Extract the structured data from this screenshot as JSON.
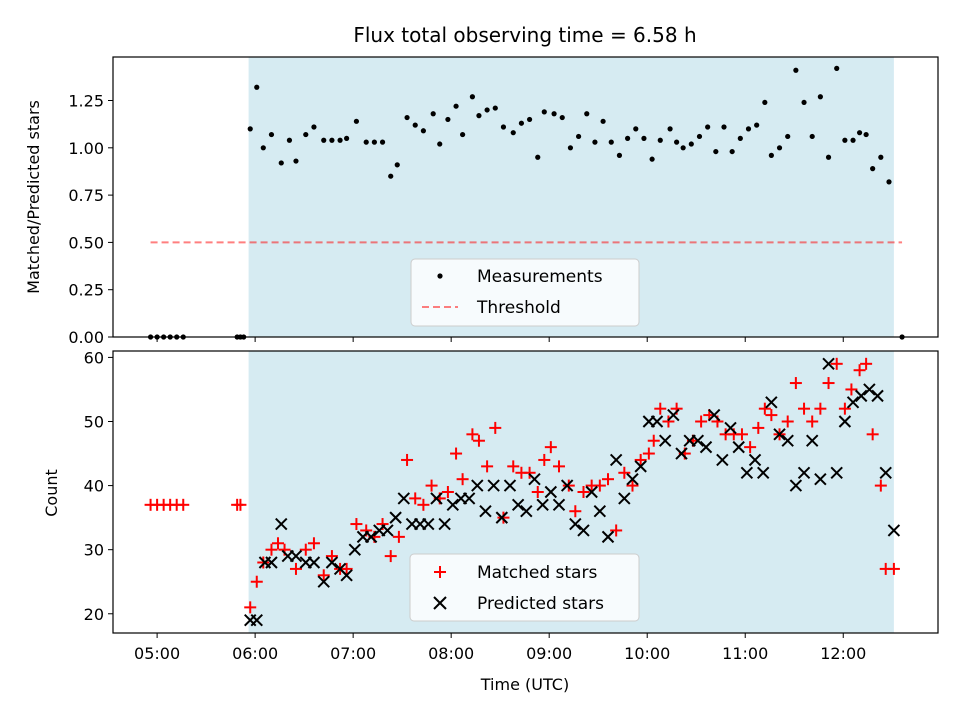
{
  "colors": {
    "observing_span": "#add8e6",
    "measurement": "#000000",
    "threshold": "#ff0000",
    "matched": "#ff0000",
    "predicted": "#000000"
  },
  "chart_data": [
    {
      "type": "scatter",
      "title": "Flux total observing time = 6.58 h",
      "xlabel": "",
      "ylabel": "Matched/Predicted stars",
      "xlim": [
        "04:33",
        "12:58"
      ],
      "ylim": [
        0,
        1.48
      ],
      "yticks": [
        "0.00",
        "0.25",
        "0.50",
        "0.75",
        "1.00",
        "1.25"
      ],
      "shaded_span": [
        "05:56",
        "12:31"
      ],
      "legend_position": "lower center",
      "series": [
        {
          "name": "Measurements",
          "marker": "dot",
          "points": [
            [
              "04:56",
              0
            ],
            [
              "05:00",
              0
            ],
            [
              "05:04",
              0
            ],
            [
              "05:08",
              0
            ],
            [
              "05:12",
              0
            ],
            [
              "05:16",
              0
            ],
            [
              "05:49",
              0
            ],
            [
              "05:51",
              0
            ],
            [
              "05:53",
              0
            ],
            [
              "05:57",
              1.1
            ],
            [
              "06:01",
              1.32
            ],
            [
              "06:05",
              1.0
            ],
            [
              "06:10",
              1.07
            ],
            [
              "06:16",
              0.92
            ],
            [
              "06:21",
              1.04
            ],
            [
              "06:25",
              0.93
            ],
            [
              "06:31",
              1.07
            ],
            [
              "06:36",
              1.11
            ],
            [
              "06:42",
              1.04
            ],
            [
              "06:47",
              1.04
            ],
            [
              "06:52",
              1.04
            ],
            [
              "06:56",
              1.05
            ],
            [
              "07:02",
              1.14
            ],
            [
              "07:08",
              1.03
            ],
            [
              "07:13",
              1.03
            ],
            [
              "07:18",
              1.03
            ],
            [
              "07:23",
              0.85
            ],
            [
              "07:27",
              0.91
            ],
            [
              "07:33",
              1.16
            ],
            [
              "07:38",
              1.12
            ],
            [
              "07:43",
              1.09
            ],
            [
              "07:49",
              1.18
            ],
            [
              "07:53",
              1.02
            ],
            [
              "07:58",
              1.15
            ],
            [
              "08:03",
              1.22
            ],
            [
              "08:07",
              1.07
            ],
            [
              "08:13",
              1.27
            ],
            [
              "08:17",
              1.17
            ],
            [
              "08:22",
              1.2
            ],
            [
              "08:27",
              1.21
            ],
            [
              "08:32",
              1.11
            ],
            [
              "08:38",
              1.08
            ],
            [
              "08:43",
              1.13
            ],
            [
              "08:48",
              1.15
            ],
            [
              "08:53",
              0.95
            ],
            [
              "08:57",
              1.19
            ],
            [
              "09:03",
              1.18
            ],
            [
              "09:08",
              1.16
            ],
            [
              "09:13",
              1.0
            ],
            [
              "09:18",
              1.06
            ],
            [
              "09:23",
              1.18
            ],
            [
              "09:28",
              1.03
            ],
            [
              "09:33",
              1.14
            ],
            [
              "09:38",
              1.03
            ],
            [
              "09:43",
              0.96
            ],
            [
              "09:48",
              1.05
            ],
            [
              "09:53",
              1.1
            ],
            [
              "09:58",
              1.05
            ],
            [
              "10:03",
              0.94
            ],
            [
              "10:08",
              1.04
            ],
            [
              "10:14",
              1.1
            ],
            [
              "10:18",
              1.03
            ],
            [
              "10:22",
              1.0
            ],
            [
              "10:27",
              1.02
            ],
            [
              "10:32",
              1.06
            ],
            [
              "10:37",
              1.11
            ],
            [
              "10:42",
              0.98
            ],
            [
              "10:47",
              1.11
            ],
            [
              "10:52",
              0.98
            ],
            [
              "10:57",
              1.05
            ],
            [
              "11:02",
              1.1
            ],
            [
              "11:07",
              1.12
            ],
            [
              "11:12",
              1.24
            ],
            [
              "11:16",
              0.96
            ],
            [
              "11:21",
              1.0
            ],
            [
              "11:26",
              1.06
            ],
            [
              "11:31",
              1.41
            ],
            [
              "11:36",
              1.24
            ],
            [
              "11:41",
              1.06
            ],
            [
              "11:46",
              1.27
            ],
            [
              "11:51",
              0.95
            ],
            [
              "11:56",
              1.42
            ],
            [
              "12:01",
              1.04
            ],
            [
              "12:06",
              1.04
            ],
            [
              "12:10",
              1.08
            ],
            [
              "12:14",
              1.07
            ],
            [
              "12:18",
              0.89
            ],
            [
              "12:23",
              0.95
            ],
            [
              "12:28",
              0.82
            ],
            [
              "12:36",
              0
            ]
          ]
        },
        {
          "name": "Threshold",
          "style": "dashed",
          "points": [
            [
              "04:56",
              0.5
            ],
            [
              "12:36",
              0.5
            ]
          ]
        }
      ]
    },
    {
      "type": "scatter",
      "title": "",
      "xlabel": "Time (UTC)",
      "ylabel": "Count",
      "xlim": [
        "04:33",
        "12:58"
      ],
      "ylim": [
        17,
        61
      ],
      "xticks": [
        "05:00",
        "06:00",
        "07:00",
        "08:00",
        "09:00",
        "10:00",
        "11:00",
        "12:00"
      ],
      "yticks": [
        "20",
        "30",
        "40",
        "50",
        "60"
      ],
      "shaded_span": [
        "05:56",
        "12:31"
      ],
      "legend_position": "lower center",
      "series": [
        {
          "name": "Matched stars",
          "marker": "plus",
          "points": [
            [
              "04:56",
              37
            ],
            [
              "05:00",
              37
            ],
            [
              "05:04",
              37
            ],
            [
              "05:08",
              37
            ],
            [
              "05:12",
              37
            ],
            [
              "05:16",
              37
            ],
            [
              "05:49",
              37
            ],
            [
              "05:51",
              37
            ],
            [
              "05:57",
              21
            ],
            [
              "06:01",
              25
            ],
            [
              "06:05",
              28
            ],
            [
              "06:10",
              30
            ],
            [
              "06:14",
              31
            ],
            [
              "06:18",
              30
            ],
            [
              "06:25",
              27
            ],
            [
              "06:31",
              30
            ],
            [
              "06:36",
              31
            ],
            [
              "06:42",
              26
            ],
            [
              "06:47",
              29
            ],
            [
              "06:52",
              27
            ],
            [
              "06:56",
              27
            ],
            [
              "07:02",
              34
            ],
            [
              "07:08",
              33
            ],
            [
              "07:13",
              32
            ],
            [
              "07:18",
              34
            ],
            [
              "07:23",
              29
            ],
            [
              "07:28",
              32
            ],
            [
              "07:33",
              44
            ],
            [
              "07:38",
              38
            ],
            [
              "07:43",
              37
            ],
            [
              "07:48",
              40
            ],
            [
              "07:53",
              38
            ],
            [
              "07:58",
              39
            ],
            [
              "08:03",
              45
            ],
            [
              "08:07",
              41
            ],
            [
              "08:13",
              48
            ],
            [
              "08:17",
              47
            ],
            [
              "08:22",
              43
            ],
            [
              "08:27",
              49
            ],
            [
              "08:32",
              35
            ],
            [
              "08:38",
              43
            ],
            [
              "08:43",
              42
            ],
            [
              "08:48",
              42
            ],
            [
              "08:53",
              39
            ],
            [
              "08:57",
              44
            ],
            [
              "09:01",
              46
            ],
            [
              "09:06",
              43
            ],
            [
              "09:12",
              40
            ],
            [
              "09:16",
              36
            ],
            [
              "09:21",
              39
            ],
            [
              "09:26",
              40
            ],
            [
              "09:31",
              40
            ],
            [
              "09:36",
              41
            ],
            [
              "09:41",
              33
            ],
            [
              "09:46",
              42
            ],
            [
              "09:51",
              40
            ],
            [
              "09:56",
              44
            ],
            [
              "10:01",
              45
            ],
            [
              "10:04",
              47
            ],
            [
              "10:08",
              52
            ],
            [
              "10:13",
              50
            ],
            [
              "10:18",
              52
            ],
            [
              "10:23",
              45
            ],
            [
              "10:28",
              47
            ],
            [
              "10:33",
              50
            ],
            [
              "10:38",
              51
            ],
            [
              "10:43",
              50
            ],
            [
              "10:48",
              48
            ],
            [
              "10:53",
              48
            ],
            [
              "10:58",
              48
            ],
            [
              "11:03",
              46
            ],
            [
              "11:08",
              49
            ],
            [
              "11:12",
              52
            ],
            [
              "11:16",
              51
            ],
            [
              "11:21",
              48
            ],
            [
              "11:26",
              50
            ],
            [
              "11:31",
              56
            ],
            [
              "11:36",
              52
            ],
            [
              "11:41",
              50
            ],
            [
              "11:46",
              52
            ],
            [
              "11:51",
              56
            ],
            [
              "11:56",
              59
            ],
            [
              "12:01",
              52
            ],
            [
              "12:05",
              55
            ],
            [
              "12:10",
              58
            ],
            [
              "12:14",
              59
            ],
            [
              "12:18",
              48
            ],
            [
              "12:23",
              40
            ],
            [
              "12:26",
              27
            ],
            [
              "12:31",
              27
            ]
          ]
        },
        {
          "name": "Predicted stars",
          "marker": "x",
          "points": [
            [
              "05:57",
              19
            ],
            [
              "06:01",
              19
            ],
            [
              "06:06",
              28
            ],
            [
              "06:10",
              28
            ],
            [
              "06:16",
              34
            ],
            [
              "06:20",
              29
            ],
            [
              "06:25",
              29
            ],
            [
              "06:31",
              28
            ],
            [
              "06:36",
              28
            ],
            [
              "06:42",
              25
            ],
            [
              "06:47",
              28
            ],
            [
              "06:52",
              27
            ],
            [
              "06:56",
              26
            ],
            [
              "07:01",
              30
            ],
            [
              "07:06",
              32
            ],
            [
              "07:11",
              32
            ],
            [
              "07:16",
              33
            ],
            [
              "07:21",
              33
            ],
            [
              "07:26",
              35
            ],
            [
              "07:31",
              38
            ],
            [
              "07:36",
              34
            ],
            [
              "07:41",
              34
            ],
            [
              "07:46",
              34
            ],
            [
              "07:51",
              38
            ],
            [
              "07:56",
              34
            ],
            [
              "08:01",
              37
            ],
            [
              "08:06",
              38
            ],
            [
              "08:11",
              38
            ],
            [
              "08:16",
              40
            ],
            [
              "08:21",
              36
            ],
            [
              "08:26",
              40
            ],
            [
              "08:31",
              35
            ],
            [
              "08:36",
              40
            ],
            [
              "08:41",
              37
            ],
            [
              "08:46",
              36
            ],
            [
              "08:51",
              41
            ],
            [
              "08:56",
              37
            ],
            [
              "09:01",
              39
            ],
            [
              "09:06",
              37
            ],
            [
              "09:11",
              40
            ],
            [
              "09:16",
              34
            ],
            [
              "09:21",
              33
            ],
            [
              "09:26",
              39
            ],
            [
              "09:31",
              36
            ],
            [
              "09:36",
              32
            ],
            [
              "09:41",
              44
            ],
            [
              "09:46",
              38
            ],
            [
              "09:51",
              41
            ],
            [
              "09:56",
              43
            ],
            [
              "10:01",
              50
            ],
            [
              "10:06",
              50
            ],
            [
              "10:11",
              47
            ],
            [
              "10:16",
              51
            ],
            [
              "10:21",
              45
            ],
            [
              "10:26",
              47
            ],
            [
              "10:31",
              47
            ],
            [
              "10:36",
              46
            ],
            [
              "10:41",
              51
            ],
            [
              "10:46",
              44
            ],
            [
              "10:51",
              49
            ],
            [
              "10:56",
              46
            ],
            [
              "11:01",
              42
            ],
            [
              "11:06",
              44
            ],
            [
              "11:11",
              42
            ],
            [
              "11:16",
              53
            ],
            [
              "11:21",
              48
            ],
            [
              "11:26",
              47
            ],
            [
              "11:31",
              40
            ],
            [
              "11:36",
              42
            ],
            [
              "11:41",
              47
            ],
            [
              "11:46",
              41
            ],
            [
              "11:51",
              59
            ],
            [
              "11:56",
              42
            ],
            [
              "12:01",
              50
            ],
            [
              "12:06",
              53
            ],
            [
              "12:11",
              54
            ],
            [
              "12:16",
              55
            ],
            [
              "12:21",
              54
            ],
            [
              "12:26",
              42
            ],
            [
              "12:31",
              33
            ]
          ]
        }
      ]
    }
  ]
}
